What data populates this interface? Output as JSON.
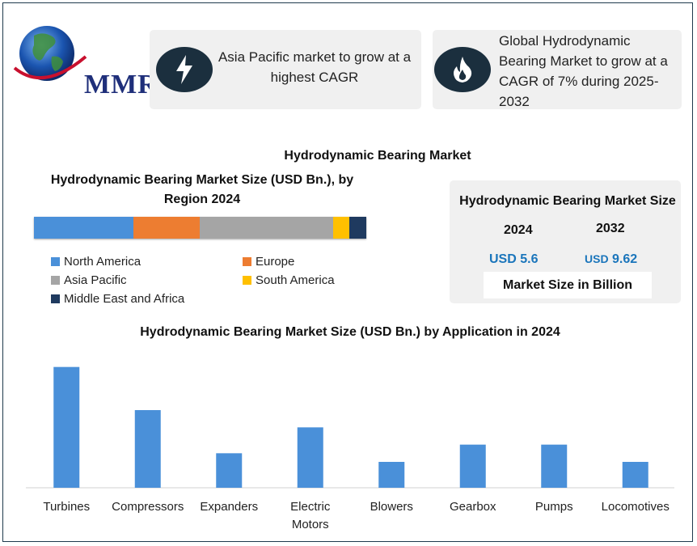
{
  "logo": {
    "text": "MMR"
  },
  "cards": [
    {
      "icon": "lightning-bolt-icon",
      "text": "Asia Pacific market to grow at a highest CAGR"
    },
    {
      "icon": "flame-icon",
      "text": "Global Hydrodynamic Bearing Market to grow at a CAGR of 7% during 2025-2032"
    }
  ],
  "main_title": "Hydrodynamic Bearing Market",
  "region": {
    "title": "Hydrodynamic Bearing Market Size (USD Bn.), by Region 2024",
    "segments": [
      {
        "name": "North America",
        "share": 0.3,
        "color": "#4a90d9"
      },
      {
        "name": "Europe",
        "share": 0.2,
        "color": "#ed7d31"
      },
      {
        "name": "Asia Pacific",
        "share": 0.4,
        "color": "#a5a5a5"
      },
      {
        "name": "South America",
        "share": 0.05,
        "color": "#ffc000"
      },
      {
        "name": "Middle East and Africa",
        "share": 0.05,
        "color": "#1f3a5f"
      }
    ]
  },
  "market_size": {
    "title": "Hydrodynamic Bearing Market Size",
    "year_1": "2024",
    "year_2": "2032",
    "value_1": "USD 5.6",
    "value_2_prefix": "USD",
    "value_2": "9.62",
    "unit_note": "Market Size in Billion"
  },
  "chart_data": {
    "type": "bar",
    "title": "Hydrodynamic Bearing Market Size (USD Bn.)  by Application in 2024",
    "categories": [
      "Turbines",
      "Compressors",
      "Expanders",
      "Electric Motors",
      "Blowers",
      "Gearbox",
      "Pumps",
      "Locomotives"
    ],
    "category_lines": [
      [
        "Turbines"
      ],
      [
        "Compressors"
      ],
      [
        "Expanders"
      ],
      [
        "Electric",
        "Motors"
      ],
      [
        "Blowers"
      ],
      [
        "Gearbox"
      ],
      [
        "Pumps"
      ],
      [
        "Locomotives"
      ]
    ],
    "values": [
      1.4,
      0.9,
      0.4,
      0.7,
      0.3,
      0.5,
      0.5,
      0.3
    ],
    "ylim": [
      0,
      1.5
    ],
    "color": "#4a90d9",
    "grid": false
  }
}
